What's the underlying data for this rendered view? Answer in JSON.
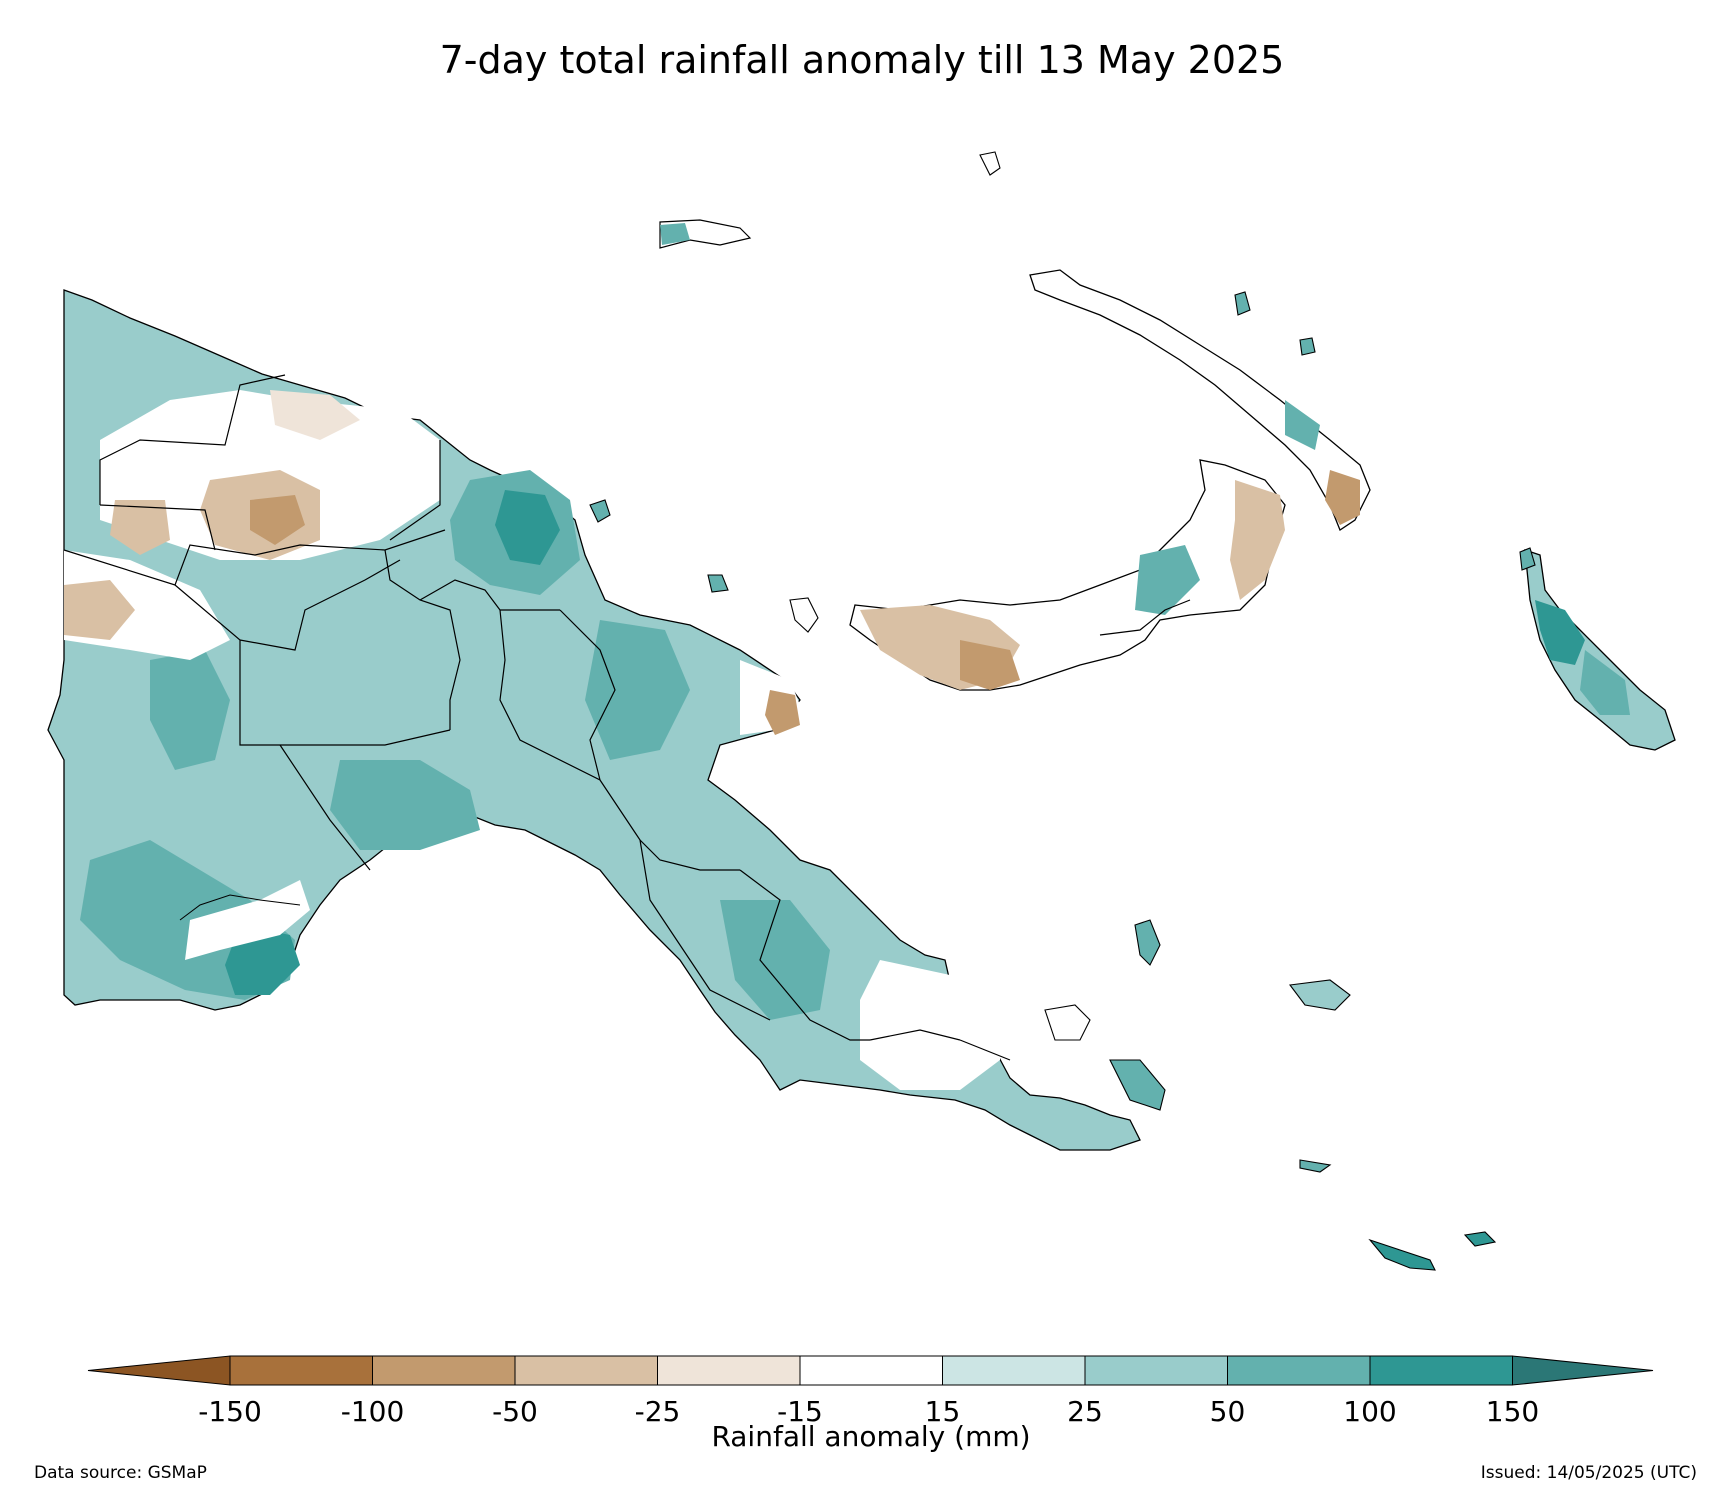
{
  "title": "7-day total rainfall anomaly till 13 May 2025",
  "colorbar": {
    "label": "Rainfall anomaly (mm)",
    "extend": "both",
    "ticks": [
      "-150",
      "-100",
      "-50",
      "-25",
      "-15",
      "15",
      "25",
      "50",
      "100",
      "150"
    ],
    "colors": {
      "below_min": "#8c5523",
      "bins": [
        "#a8713b",
        "#c29a6e",
        "#d9c0a4",
        "#efe4d9",
        "#ffffff",
        "#cce5e4",
        "#99cccb",
        "#63b1ae",
        "#2e9793"
      ],
      "above_max": "#2b7776"
    }
  },
  "legend": {
    "data_source": "Data source: GSMaP",
    "issued": "Issued: 14/05/2025 (UTC)"
  }
}
